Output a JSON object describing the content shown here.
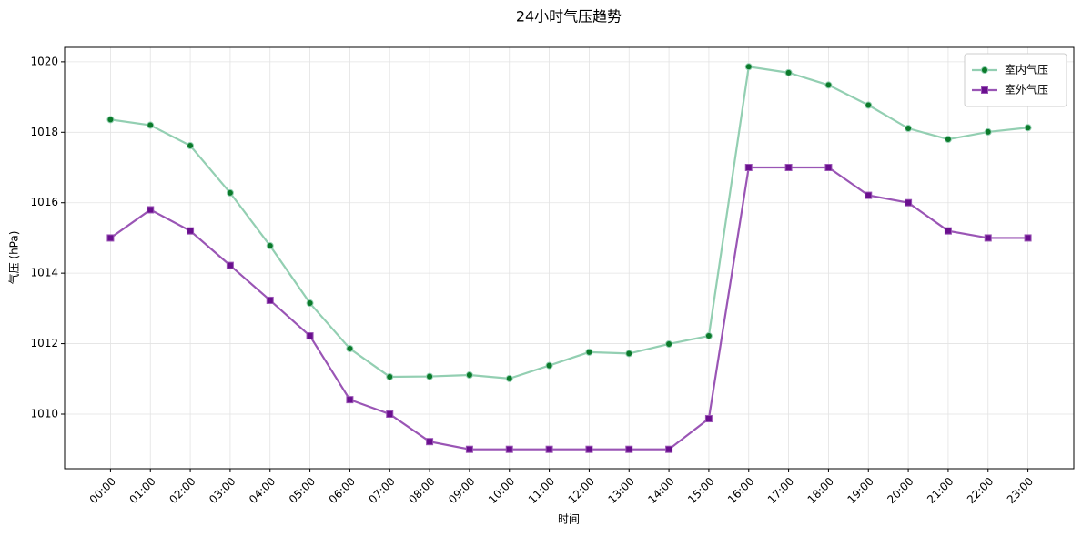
{
  "chart_data": {
    "type": "line",
    "title": "24小时气压趋势",
    "x_label": "时间",
    "y_label": "气压 (hPa)",
    "categories": [
      "00:00",
      "01:00",
      "02:00",
      "03:00",
      "04:00",
      "05:00",
      "06:00",
      "07:00",
      "08:00",
      "09:00",
      "10:00",
      "11:00",
      "12:00",
      "13:00",
      "14:00",
      "15:00",
      "16:00",
      "17:00",
      "18:00",
      "19:00",
      "20:00",
      "21:00",
      "22:00",
      "23:00"
    ],
    "series": [
      {
        "name": "室内气压",
        "color": "#93cfb2",
        "marker_color": "#0b7a2a",
        "marker": "circle",
        "values": [
          1018.36,
          1018.2,
          1017.62,
          1016.28,
          1014.78,
          1013.15,
          1011.86,
          1011.06,
          1011.07,
          1011.11,
          1011.01,
          1011.38,
          1011.76,
          1011.72,
          1011.99,
          1012.22,
          1019.86,
          1019.69,
          1019.34,
          1018.77,
          1018.11,
          1017.8,
          1018.01,
          1018.13
        ]
      },
      {
        "name": "室外气压",
        "color": "#9a55b5",
        "marker_color": "#6a0f8e",
        "marker": "square",
        "values": [
          1015.0,
          1015.8,
          1015.2,
          1014.22,
          1013.23,
          1012.22,
          1010.41,
          1010.0,
          1009.22,
          1009.0,
          1009.0,
          1009.0,
          1009.0,
          1009.0,
          1009.0,
          1009.87,
          1017.0,
          1017.0,
          1017.0,
          1016.21,
          1016.0,
          1015.2,
          1015.0,
          1015.0
        ]
      }
    ],
    "ylim": [
      1008.45,
      1020.41
    ],
    "yticks": [
      1010,
      1012,
      1014,
      1016,
      1018,
      1020
    ],
    "grid": true,
    "legend_position": "upper-right"
  }
}
